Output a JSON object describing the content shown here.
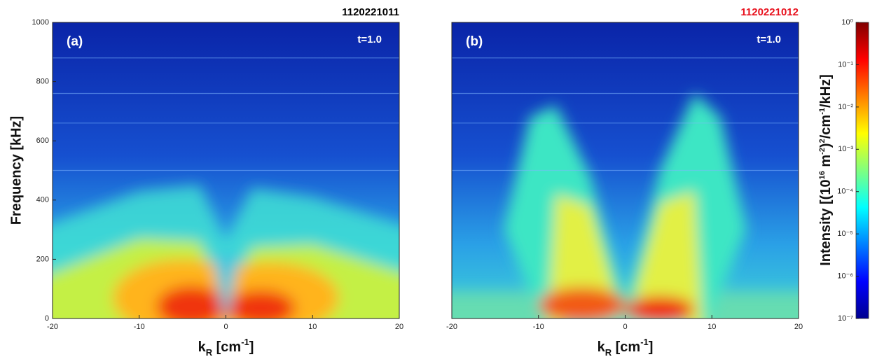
{
  "chart_data": [
    {
      "type": "heatmap",
      "title": "1120221011",
      "title_color": "#000000",
      "annotations": [
        "(a)",
        "t=1.0"
      ],
      "x_label": [
        "k",
        "R",
        " [cm",
        "-1",
        "]"
      ],
      "y_label": "Frequency [kHz]",
      "xlim": [
        -20,
        20
      ],
      "ylim": [
        0,
        1000
      ],
      "xticks": [
        -20,
        -10,
        0,
        10,
        20
      ],
      "yticks": [
        0,
        200,
        400,
        600,
        800,
        1000
      ]
    },
    {
      "type": "heatmap",
      "title": "1120221012",
      "title_color": "#e8101c",
      "annotations": [
        "(b)",
        "t=1.0"
      ],
      "x_label": [
        "k",
        "R",
        " [cm",
        "-1",
        "]"
      ],
      "xlim": [
        -20,
        20
      ],
      "ylim": [
        0,
        1000
      ],
      "xticks": [
        -20,
        -10,
        0,
        10,
        20
      ]
    }
  ],
  "colorbar": {
    "label": [
      "Intensity [(10",
      "16",
      " m",
      "-2",
      ")",
      "2",
      "/cm",
      "-1",
      "/kHz]"
    ],
    "scale": "log",
    "lim": [
      1e-07,
      1
    ],
    "ticks": [
      {
        "value": 1,
        "label": "10⁰"
      },
      {
        "value": 0.1,
        "label": "10⁻¹"
      },
      {
        "value": 0.01,
        "label": "10⁻²"
      },
      {
        "value": 0.001,
        "label": "10⁻³"
      },
      {
        "value": 0.0001,
        "label": "10⁻⁴"
      },
      {
        "value": 1e-05,
        "label": "10⁻⁵"
      },
      {
        "value": 1e-06,
        "label": "10⁻⁶"
      },
      {
        "value": 1e-07,
        "label": "10⁻⁷"
      }
    ]
  }
}
